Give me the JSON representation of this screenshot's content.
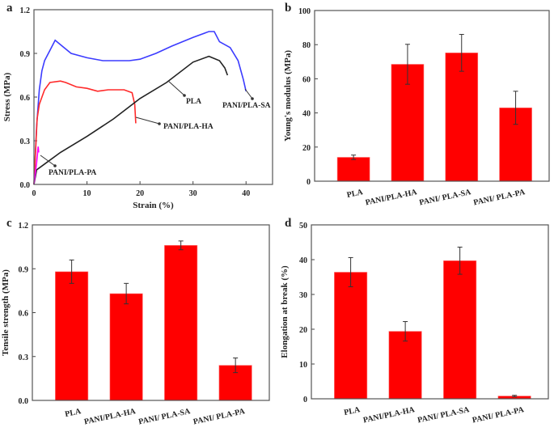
{
  "chart_data": [
    {
      "panel": "a",
      "type": "line",
      "xlabel": "Strain (%)",
      "ylabel": "Stress (MPa)",
      "xlim": [
        0,
        45
      ],
      "ylim": [
        0,
        1.2
      ],
      "xticks": [
        0,
        10,
        20,
        30,
        40
      ],
      "yticks": [
        "0.0",
        "0.3",
        "0.6",
        "0.9",
        "1.2"
      ],
      "grid": false,
      "colors": {
        "PANI/PLA-SA": "#3b3bff",
        "PANI/PLA-HA": "#ff2a2a",
        "PLA": "#222222",
        "PANI/PLA-PA": "#ff00ff"
      },
      "series": [
        {
          "name": "PANI/PLA-SA",
          "x": [
            0,
            0.5,
            1,
            1.5,
            2,
            3,
            4,
            5,
            7,
            10,
            13,
            15,
            18,
            20,
            23,
            26,
            30,
            33,
            34,
            35,
            37,
            38.5,
            39.5,
            40
          ],
          "y": [
            0,
            0.4,
            0.65,
            0.78,
            0.85,
            0.92,
            0.99,
            0.96,
            0.9,
            0.87,
            0.85,
            0.85,
            0.85,
            0.86,
            0.9,
            0.95,
            1.01,
            1.05,
            1.05,
            0.98,
            0.94,
            0.85,
            0.72,
            0.64
          ]
        },
        {
          "name": "PANI/PLA-HA",
          "x": [
            0,
            0.6,
            1,
            2,
            3,
            5,
            6,
            8,
            10,
            12,
            14,
            17,
            18.5,
            19,
            19.2
          ],
          "y": [
            0,
            0.45,
            0.55,
            0.65,
            0.7,
            0.71,
            0.7,
            0.67,
            0.66,
            0.64,
            0.65,
            0.65,
            0.63,
            0.55,
            0.42
          ]
        },
        {
          "name": "PLA",
          "x": [
            0,
            0.5,
            2,
            5,
            10,
            15,
            20,
            25,
            30,
            33,
            35,
            36,
            36.5
          ],
          "y": [
            0,
            0.1,
            0.14,
            0.22,
            0.33,
            0.45,
            0.59,
            0.7,
            0.84,
            0.88,
            0.85,
            0.8,
            0.75
          ]
        },
        {
          "name": "PANI/PLA-PA",
          "x": [
            0,
            0.5,
            0.8,
            0.9
          ],
          "y": [
            0,
            0.15,
            0.26,
            0.22
          ]
        }
      ],
      "annotations": [
        "PLA",
        "PANI/PLA-SA",
        "PANI/PLA-HA",
        "PANI/PLA-PA"
      ]
    },
    {
      "panel": "b",
      "type": "bar",
      "ylabel": "Young's modulus (MPa)",
      "categories": [
        "PLA",
        "PANI/PLA-HA",
        "PANI/ PLA-SA",
        "PANI/ PLA-PA"
      ],
      "values": [
        14,
        68.5,
        75.2,
        43
      ],
      "error": [
        1.3,
        11.7,
        10.8,
        9.7
      ],
      "ylim": [
        0,
        100
      ],
      "yticks": [
        "0",
        "20",
        "40",
        "60",
        "80",
        "100"
      ],
      "color": "#ff0000"
    },
    {
      "panel": "c",
      "type": "bar",
      "ylabel": "Tensile strength  (MPa)",
      "categories": [
        "PLA",
        "PANI/PLA-HA",
        "PANI/ PLA-SA",
        "PANI/ PLA-PA"
      ],
      "values": [
        0.88,
        0.73,
        1.06,
        0.24
      ],
      "error": [
        0.08,
        0.07,
        0.03,
        0.05
      ],
      "ylim": [
        0,
        1.2
      ],
      "yticks": [
        "0.0",
        "0.3",
        "0.6",
        "0.9",
        "1.2"
      ],
      "color": "#ff0000"
    },
    {
      "panel": "d",
      "type": "bar",
      "ylabel": "Elongation at break (%)",
      "categories": [
        "PLA",
        "PANI/PLA-HA",
        "PANI/ PLA-SA",
        "PANI/ PLA-PA"
      ],
      "values": [
        36.4,
        19.4,
        39.7,
        0.8
      ],
      "error": [
        4.2,
        2.8,
        3.9,
        0.2
      ],
      "ylim": [
        0,
        50
      ],
      "yticks": [
        "0",
        "10",
        "20",
        "30",
        "40",
        "50"
      ],
      "color": "#ff0000"
    }
  ]
}
